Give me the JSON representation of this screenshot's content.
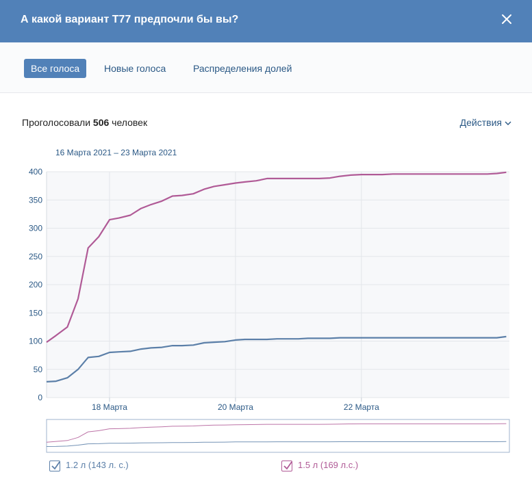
{
  "header": {
    "title": "А какой вариант Т77 предпочли бы вы?"
  },
  "tabs": [
    {
      "label": "Все голоса",
      "active": true
    },
    {
      "label": "Новые голоса",
      "active": false
    },
    {
      "label": "Распределения долей",
      "active": false
    }
  ],
  "summary": {
    "prefix": "Проголосовали",
    "count": "506",
    "suffix": "человек"
  },
  "actions_label": "Действия",
  "date_range": "16 Марта 2021 – 23 Марта 2021",
  "chart_data": {
    "type": "line",
    "ylim": [
      0,
      400
    ],
    "y_ticks": [
      "0",
      "50",
      "100",
      "150",
      "200",
      "250",
      "300",
      "350",
      "400"
    ],
    "x_range": [
      16.0,
      23.35
    ],
    "x_ticks": [
      {
        "x": 17.0,
        "label": "18 Марта"
      },
      {
        "x": 19.0,
        "label": "20 Марта"
      },
      {
        "x": 21.0,
        "label": "22 Марта"
      }
    ],
    "grid": true,
    "series": [
      {
        "name": "1.2 л (143 л. с.)",
        "color": "#5b7fa8",
        "x": [
          16.0,
          16.15,
          16.33,
          16.5,
          16.66,
          16.83,
          17.0,
          17.15,
          17.33,
          17.5,
          17.66,
          17.83,
          18.0,
          18.15,
          18.33,
          18.5,
          18.66,
          18.83,
          19.0,
          19.15,
          19.33,
          19.5,
          19.66,
          19.83,
          20.0,
          20.15,
          20.33,
          20.5,
          20.66,
          20.83,
          21.0,
          21.15,
          21.33,
          21.5,
          21.66,
          21.83,
          22.0,
          22.15,
          22.33,
          22.5,
          22.66,
          22.83,
          23.0,
          23.15,
          23.3
        ],
        "values": [
          28,
          29,
          35,
          50,
          71,
          73,
          80,
          81,
          82,
          86,
          88,
          89,
          92,
          92,
          93,
          97,
          98,
          99,
          102,
          103,
          103,
          103,
          104,
          104,
          104,
          105,
          105,
          105,
          106,
          106,
          106,
          106,
          106,
          106,
          106,
          106,
          106,
          106,
          106,
          106,
          106,
          106,
          106,
          106,
          108
        ]
      },
      {
        "name": "1.5 л (169 л.с.)",
        "color": "#b05a96",
        "x": [
          16.0,
          16.15,
          16.33,
          16.5,
          16.66,
          16.83,
          17.0,
          17.15,
          17.33,
          17.5,
          17.66,
          17.83,
          18.0,
          18.15,
          18.33,
          18.5,
          18.66,
          18.83,
          19.0,
          19.15,
          19.33,
          19.5,
          19.66,
          19.83,
          20.0,
          20.15,
          20.33,
          20.5,
          20.66,
          20.83,
          21.0,
          21.15,
          21.33,
          21.5,
          21.66,
          21.83,
          22.0,
          22.15,
          22.33,
          22.5,
          22.66,
          22.83,
          23.0,
          23.15,
          23.3
        ],
        "values": [
          98,
          110,
          125,
          175,
          265,
          285,
          315,
          318,
          323,
          335,
          342,
          348,
          357,
          358,
          361,
          369,
          374,
          377,
          380,
          382,
          384,
          388,
          388,
          388,
          388,
          388,
          388,
          389,
          392,
          394,
          395,
          395,
          395,
          396,
          396,
          396,
          396,
          396,
          396,
          396,
          396,
          396,
          396,
          397,
          399
        ]
      }
    ]
  },
  "legend": [
    {
      "label": "1.2 л (143 л. с.)",
      "color": "#5b7fa8",
      "checked": true
    },
    {
      "label": "1.5 л (169 л.с.)",
      "color": "#b05a96",
      "checked": true
    }
  ]
}
